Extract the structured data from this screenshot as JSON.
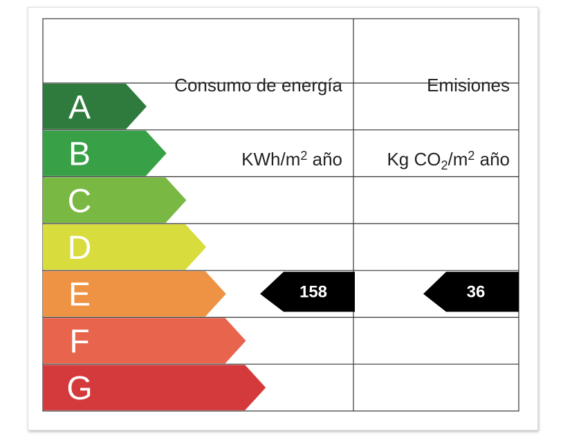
{
  "header": {
    "energy_title": "Consumo de energía",
    "energy_unit": {
      "base": "KWh/m",
      "sup": "2",
      "rest": " año"
    },
    "emissions_title": "Emisiones",
    "emissions_unit": {
      "base": "Kg CO",
      "sub": "2",
      "mid": "/m",
      "sup": "2",
      "rest": " año"
    }
  },
  "rows": [
    {
      "letter": "A",
      "color": "#2f7a3d"
    },
    {
      "letter": "B",
      "color": "#38a047"
    },
    {
      "letter": "C",
      "color": "#79b843"
    },
    {
      "letter": "D",
      "color": "#d8dc3c"
    },
    {
      "letter": "E",
      "color": "#ee9344",
      "energy": 158,
      "emissions": 36
    },
    {
      "letter": "F",
      "color": "#e8644d"
    },
    {
      "letter": "G",
      "color": "#d43a3c"
    }
  ]
}
